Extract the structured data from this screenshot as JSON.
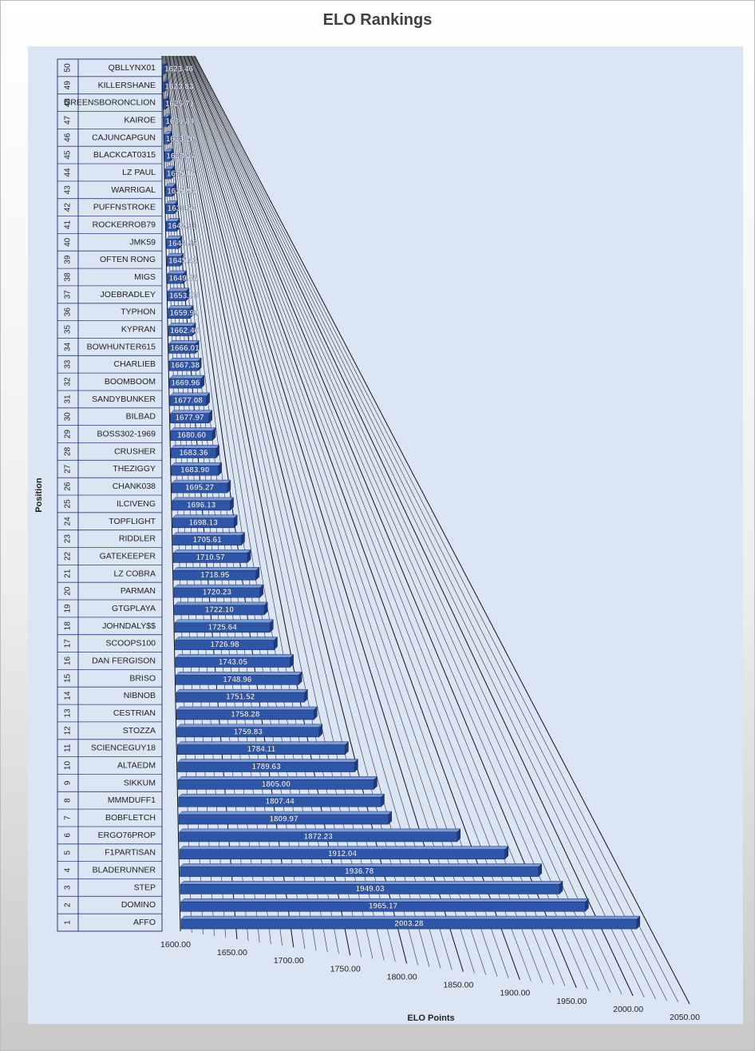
{
  "chart_data": {
    "type": "bar",
    "orientation": "horizontal",
    "style": "3d",
    "title": "ELO Rankings",
    "xlabel": "ELO Points",
    "ylabel": "Position",
    "xlim": [
      1600,
      2050
    ],
    "x_ticks": [
      "1600.00",
      "1650.00",
      "1700.00",
      "1750.00",
      "1800.00",
      "1850.00",
      "1900.00",
      "1950.00",
      "2000.00",
      "2050.00"
    ],
    "grid": true,
    "legend": "none",
    "bar_color": "#2e56a8",
    "plot_background": "#dbe5f3",
    "categories": [
      {
        "position": "1",
        "player": "AFFO",
        "value": 2003.28
      },
      {
        "position": "2",
        "player": "DOMINO",
        "value": 1965.17
      },
      {
        "position": "3",
        "player": "STEP",
        "value": 1949.03
      },
      {
        "position": "4",
        "player": "BLADERUNNER",
        "value": 1936.78
      },
      {
        "position": "5",
        "player": "F1PARTISAN",
        "value": 1912.04
      },
      {
        "position": "6",
        "player": "ERGO76PROP",
        "value": 1872.23
      },
      {
        "position": "7",
        "player": "BOBFLETCH",
        "value": 1809.97
      },
      {
        "position": "8",
        "player": "MMMDUFF1",
        "value": 1807.44
      },
      {
        "position": "9",
        "player": "SIKKUM",
        "value": 1805.0
      },
      {
        "position": "10",
        "player": "ALTAEDM",
        "value": 1789.63
      },
      {
        "position": "11",
        "player": "SCIENCEGUY18",
        "value": 1784.11
      },
      {
        "position": "12",
        "player": "STOZZA",
        "value": 1759.83
      },
      {
        "position": "13",
        "player": "CESTRIAN",
        "value": 1758.28
      },
      {
        "position": "14",
        "player": "NIBNOB",
        "value": 1751.52
      },
      {
        "position": "15",
        "player": "BRISO",
        "value": 1748.96
      },
      {
        "position": "16",
        "player": "DAN FERGISON",
        "value": 1743.05
      },
      {
        "position": "17",
        "player": "SCOOPS100",
        "value": 1726.98
      },
      {
        "position": "18",
        "player": "JOHNDALY$$",
        "value": 1725.64
      },
      {
        "position": "19",
        "player": "GTGPLAYA",
        "value": 1722.1
      },
      {
        "position": "20",
        "player": "PARMAN",
        "value": 1720.23
      },
      {
        "position": "21",
        "player": "LZ COBRA",
        "value": 1718.95
      },
      {
        "position": "22",
        "player": "GATEKEEPER",
        "value": 1710.57
      },
      {
        "position": "23",
        "player": "RIDDLER",
        "value": 1705.61
      },
      {
        "position": "24",
        "player": "TOPFLIGHT",
        "value": 1698.13
      },
      {
        "position": "25",
        "player": "ILCIVENG",
        "value": 1696.13
      },
      {
        "position": "26",
        "player": "CHANK038",
        "value": 1695.27
      },
      {
        "position": "27",
        "player": "THEZIGGY",
        "value": 1683.9
      },
      {
        "position": "28",
        "player": "CRUSHER",
        "value": 1683.36
      },
      {
        "position": "29",
        "player": "BOSS302-1969",
        "value": 1680.6
      },
      {
        "position": "30",
        "player": "BILBAD",
        "value": 1677.97
      },
      {
        "position": "31",
        "player": "SANDYBUNKER",
        "value": 1677.08
      },
      {
        "position": "32",
        "player": "BOOMBOOM",
        "value": 1669.96
      },
      {
        "position": "33",
        "player": "CHARLIEB",
        "value": 1667.38
      },
      {
        "position": "34",
        "player": "BOWHUNTER615",
        "value": 1666.01
      },
      {
        "position": "35",
        "player": "KYPRAN",
        "value": 1662.46
      },
      {
        "position": "36",
        "player": "TYPHON",
        "value": 1659.99
      },
      {
        "position": "37",
        "player": "JOEBRADLEY",
        "value": 1653.79
      },
      {
        "position": "38",
        "player": "MIGS",
        "value": 1649.86
      },
      {
        "position": "39",
        "player": "OFTEN RONG",
        "value": 1645.42
      },
      {
        "position": "40",
        "player": "JMK59",
        "value": 1644.95
      },
      {
        "position": "41",
        "player": "ROCKERROB79",
        "value": 1642.21
      },
      {
        "position": "42",
        "player": "PUFFNSTROKE",
        "value": 1638.57
      },
      {
        "position": "43",
        "player": "WARRIGAL",
        "value": 1635.93
      },
      {
        "position": "44",
        "player": "LZ PAUL",
        "value": 1635.06
      },
      {
        "position": "45",
        "player": "BLACKCAT0315",
        "value": 1633.37
      },
      {
        "position": "46",
        "player": "CAJUNCAPGUN",
        "value": 1633.2
      },
      {
        "position": "47",
        "player": "KAIROE",
        "value": 1631.84
      },
      {
        "position": "48",
        "player": "GREENSBORONCLION",
        "value": 1625.71
      },
      {
        "position": "49",
        "player": "KILLERSHANE",
        "value": 1623.83
      },
      {
        "position": "50",
        "player": "QBLLYNX01",
        "value": 1623.46
      }
    ]
  }
}
